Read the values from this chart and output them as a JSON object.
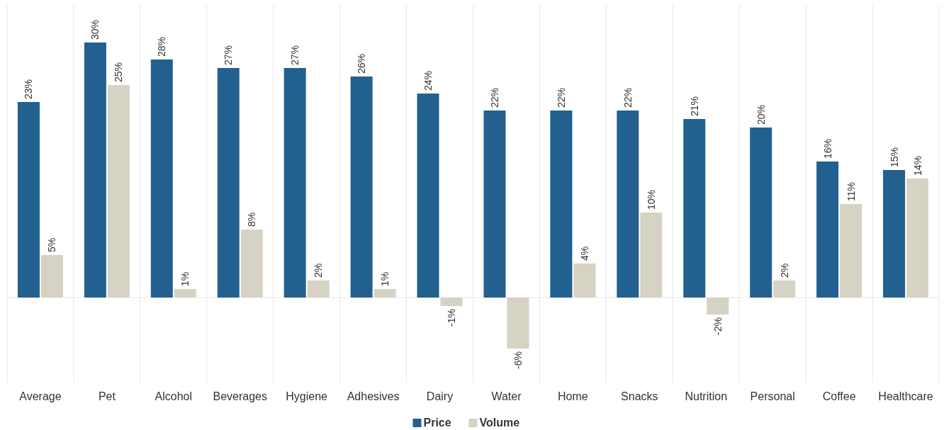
{
  "chart_data": {
    "type": "bar",
    "categories": [
      "Average",
      "Pet",
      "Alcohol",
      "Beverages",
      "Hygiene",
      "Adhesives",
      "Dairy",
      "Water",
      "Home",
      "Snacks",
      "Nutrition",
      "Personal",
      "Coffee",
      "Healthcare"
    ],
    "series": [
      {
        "name": "Price",
        "color": "#22608f",
        "values": [
          23,
          30,
          28,
          27,
          27,
          26,
          24,
          22,
          22,
          22,
          21,
          20,
          16,
          15
        ],
        "value_labels": [
          "23%",
          "30%",
          "28%",
          "27%",
          "27%",
          "26%",
          "24%",
          "22%",
          "22%",
          "22%",
          "21%",
          "20%",
          "16%",
          "15%"
        ]
      },
      {
        "name": "Volume",
        "color": "#d6d3c4",
        "values": [
          5,
          25,
          1,
          8,
          2,
          1,
          -1,
          -6,
          4,
          10,
          -2,
          2,
          11,
          14
        ],
        "value_labels": [
          "5%",
          "25%",
          "1%",
          "8%",
          "2%",
          "1%",
          "-1%",
          "-6%",
          "4%",
          "10%",
          "-2%",
          "2%",
          "11%",
          "14%"
        ]
      }
    ],
    "grid": "x",
    "legend": "bottom"
  }
}
